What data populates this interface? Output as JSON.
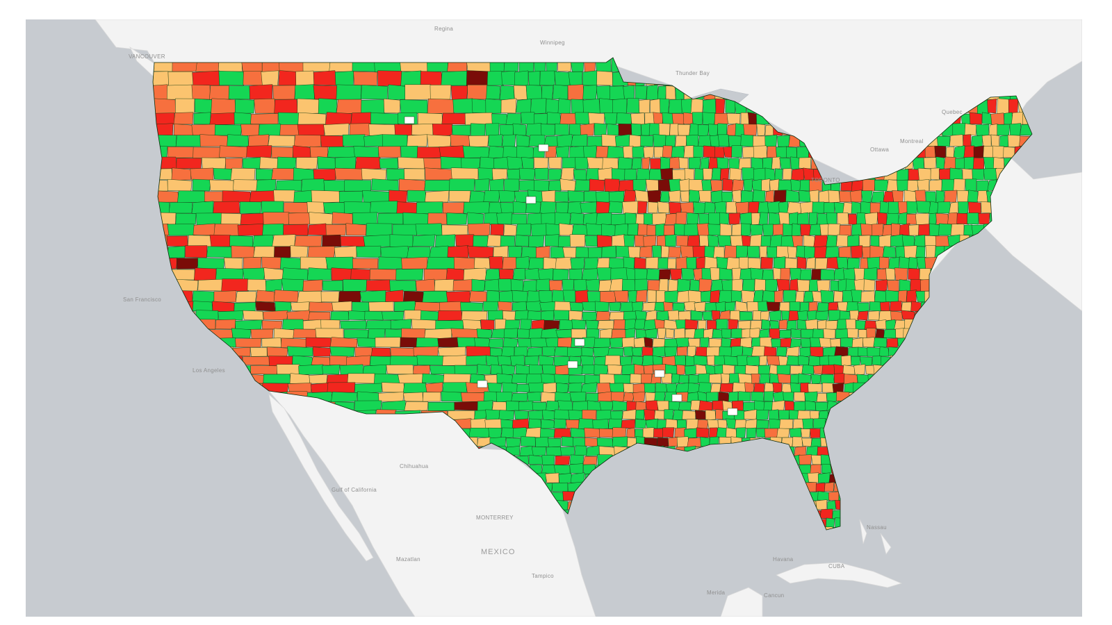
{
  "map": {
    "colors": {
      "ocean": "#c7cbd0",
      "land": "#f3f3f3",
      "border": "#d9d9d9",
      "county_stroke": "#123a12",
      "no_data": "#ffffff"
    },
    "legend_classes": [
      {
        "id": "c0",
        "color": "#15d654"
      },
      {
        "id": "c1",
        "color": "#fbc46f"
      },
      {
        "id": "c2",
        "color": "#f7703e"
      },
      {
        "id": "c3",
        "color": "#f2261e"
      },
      {
        "id": "c4",
        "color": "#7a0c08"
      }
    ],
    "labels": {
      "regina": "Regina",
      "winnipeg": "Winnipeg",
      "vancouver": "VANCOUVER",
      "thunder_bay": "Thunder Bay",
      "quebec": "Quebec",
      "montreal": "Montreal",
      "toronto": "TORONTO",
      "ottawa": "Ottawa",
      "san_francisco": "San Francisco",
      "los_angeles": "Los Angeles",
      "chihuahua": "Chihuahua",
      "gulf_of_california": "Gulf of California",
      "monterrey": "MONTERREY",
      "mexico": "MEXICO",
      "havana": "Havana",
      "cuba": "CUBA",
      "nassau": "Nassau",
      "tampico": "Tampico",
      "mazatlan": "Mazatlan",
      "cancun": "Cancun",
      "merida": "Merida"
    }
  }
}
